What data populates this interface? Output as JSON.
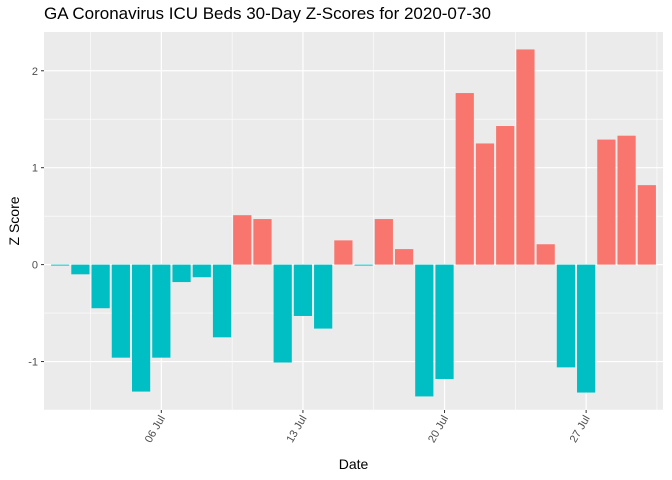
{
  "chart_data": {
    "type": "bar",
    "title": "GA Coronavirus ICU Beds 30-Day Z-Scores for 2020-07-30",
    "xlabel": "Date",
    "ylabel": "Z Score",
    "x": [
      "2020-07-01",
      "2020-07-02",
      "2020-07-03",
      "2020-07-04",
      "2020-07-05",
      "2020-07-06",
      "2020-07-07",
      "2020-07-08",
      "2020-07-09",
      "2020-07-10",
      "2020-07-11",
      "2020-07-12",
      "2020-07-13",
      "2020-07-14",
      "2020-07-15",
      "2020-07-16",
      "2020-07-17",
      "2020-07-18",
      "2020-07-19",
      "2020-07-20",
      "2020-07-21",
      "2020-07-22",
      "2020-07-23",
      "2020-07-24",
      "2020-07-25",
      "2020-07-26",
      "2020-07-27",
      "2020-07-28",
      "2020-07-29",
      "2020-07-30"
    ],
    "values": [
      -0.01,
      -0.1,
      -0.45,
      -0.96,
      -1.31,
      -0.96,
      -0.18,
      -0.13,
      -0.75,
      0.51,
      0.47,
      -1.01,
      -0.53,
      -0.66,
      0.25,
      -0.01,
      0.47,
      0.16,
      -1.36,
      -1.18,
      1.77,
      1.25,
      1.43,
      2.22,
      0.21,
      -1.06,
      -1.32,
      1.29,
      1.33,
      0.82
    ],
    "colors": {
      "positive": "#F8766D",
      "negative": "#00BFC4"
    },
    "x_ticks": [
      {
        "date": "2020-07-06",
        "label": "06 Jul"
      },
      {
        "date": "2020-07-13",
        "label": "13 Jul"
      },
      {
        "date": "2020-07-20",
        "label": "20 Jul"
      },
      {
        "date": "2020-07-27",
        "label": "27 Jul"
      }
    ],
    "y_ticks": [
      -1,
      0,
      1,
      2
    ],
    "ylim": [
      -1.5,
      2.4
    ],
    "grid": true,
    "legend": "none"
  }
}
